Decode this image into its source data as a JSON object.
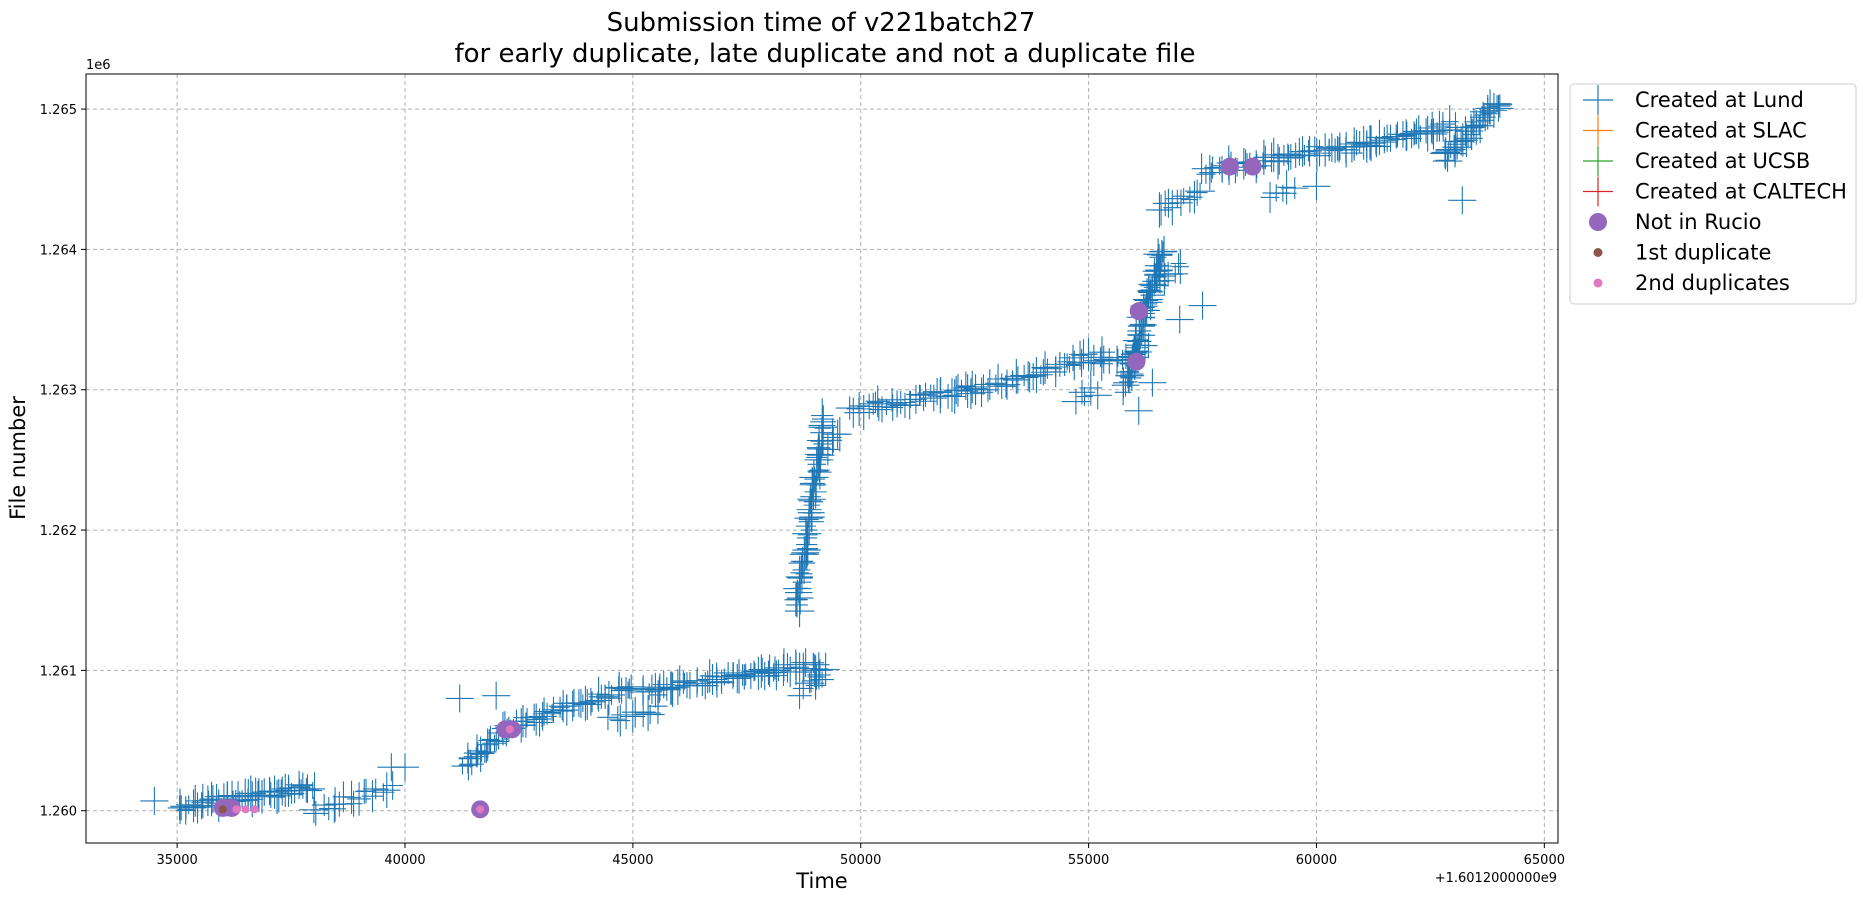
{
  "chart_data": {
    "type": "scatter",
    "title": [
      "Submission time of v221batch27",
      "for early duplicate, late duplicate and not a duplicate file"
    ],
    "xlabel": "Time",
    "ylabel": "File number",
    "x_offset_label": "+1.6012000000e9",
    "y_scale_label": "1e6",
    "xlim": [
      33000,
      65300
    ],
    "ylim": [
      1259770,
      1265250
    ],
    "xticks": [
      35000,
      40000,
      45000,
      50000,
      55000,
      60000,
      65000
    ],
    "xtick_labels": [
      "35000",
      "40000",
      "45000",
      "50000",
      "55000",
      "60000",
      "65000"
    ],
    "yticks": [
      1260000,
      1261000,
      1262000,
      1263000,
      1264000,
      1265000
    ],
    "ytick_labels": [
      "1.260",
      "1.261",
      "1.262",
      "1.263",
      "1.264",
      "1.265"
    ],
    "grid": true,
    "legend_position": "outside-right",
    "lund_segments": [
      {
        "x0": 35000,
        "x1": 38000,
        "y0": 1260020,
        "y1": 1260170,
        "n": 60
      },
      {
        "x0": 38000,
        "x1": 39700,
        "y0": 1260000,
        "y1": 1260160,
        "n": 18
      },
      {
        "x0": 41300,
        "x1": 42300,
        "y0": 1260320,
        "y1": 1260600,
        "n": 24
      },
      {
        "x0": 42300,
        "x1": 45000,
        "y0": 1260600,
        "y1": 1260880,
        "n": 45
      },
      {
        "x0": 44500,
        "x1": 45500,
        "y0": 1260640,
        "y1": 1260720,
        "n": 10
      },
      {
        "x0": 45200,
        "x1": 47700,
        "y0": 1260840,
        "y1": 1260990,
        "n": 42
      },
      {
        "x0": 47700,
        "x1": 49200,
        "y0": 1260980,
        "y1": 1261040,
        "n": 26
      },
      {
        "x0": 48700,
        "x1": 49200,
        "y0": 1260850,
        "y1": 1260950,
        "n": 8
      },
      {
        "x0": 48600,
        "x1": 49200,
        "y0": 1261450,
        "y1": 1262800,
        "n": 70
      },
      {
        "x0": 49300,
        "x1": 49600,
        "y0": 1262600,
        "y1": 1262700,
        "n": 5
      },
      {
        "x0": 49800,
        "x1": 52500,
        "y0": 1262850,
        "y1": 1263000,
        "n": 40
      },
      {
        "x0": 52500,
        "x1": 55300,
        "y0": 1263000,
        "y1": 1263250,
        "n": 40
      },
      {
        "x0": 55300,
        "x1": 56300,
        "y0": 1263200,
        "y1": 1263300,
        "n": 12
      },
      {
        "x0": 54700,
        "x1": 55100,
        "y0": 1262940,
        "y1": 1262980,
        "n": 4
      },
      {
        "x0": 55800,
        "x1": 56600,
        "y0": 1263000,
        "y1": 1264000,
        "n": 70
      },
      {
        "x0": 56300,
        "x1": 57000,
        "y0": 1263700,
        "y1": 1263900,
        "n": 10
      },
      {
        "x0": 56500,
        "x1": 57500,
        "y0": 1264300,
        "y1": 1264380,
        "n": 12
      },
      {
        "x0": 57500,
        "x1": 60500,
        "y0": 1264550,
        "y1": 1264730,
        "n": 45
      },
      {
        "x0": 59000,
        "x1": 59500,
        "y0": 1264400,
        "y1": 1264450,
        "n": 5
      },
      {
        "x0": 60500,
        "x1": 63000,
        "y0": 1264700,
        "y1": 1264880,
        "n": 45
      },
      {
        "x0": 62800,
        "x1": 64000,
        "y0": 1264650,
        "y1": 1265050,
        "n": 40
      }
    ],
    "lund_points": [
      [
        34500,
        1260070
      ],
      [
        39700,
        1260310
      ],
      [
        40000,
        1260310
      ],
      [
        41200,
        1260800
      ],
      [
        42000,
        1260820
      ],
      [
        57500,
        1263600
      ],
      [
        57000,
        1263500
      ],
      [
        55200,
        1262960
      ],
      [
        56100,
        1262850
      ],
      [
        56400,
        1263050
      ],
      [
        63200,
        1264350
      ],
      [
        60000,
        1264450
      ]
    ],
    "series": [
      {
        "name": "Created at Lund",
        "color": "#1f77b4",
        "marker": "plus"
      },
      {
        "name": "Created at SLAC",
        "color": "#ff7f0e",
        "marker": "plus"
      },
      {
        "name": "Created at UCSB",
        "color": "#2ca02c",
        "marker": "plus"
      },
      {
        "name": "Created at CALTECH",
        "color": "#d62728",
        "marker": "plus"
      },
      {
        "name": "Not in Rucio",
        "color": "#9467bd",
        "marker": "circle",
        "points": [
          [
            36000,
            1260020
          ],
          [
            36200,
            1260020
          ],
          [
            41650,
            1260010
          ],
          [
            42200,
            1260580
          ],
          [
            42350,
            1260580
          ],
          [
            56100,
            1263560
          ],
          [
            56050,
            1263200
          ],
          [
            58100,
            1264590
          ],
          [
            58600,
            1264590
          ]
        ]
      },
      {
        "name": "1st duplicate",
        "color": "#8c564b",
        "marker": "dot",
        "points": [
          [
            36000,
            1260010
          ]
        ]
      },
      {
        "name": "2nd duplicates",
        "color": "#e377c2",
        "marker": "dot",
        "points": [
          [
            36300,
            1260010
          ],
          [
            36500,
            1260010
          ],
          [
            36700,
            1260010
          ],
          [
            41650,
            1260010
          ],
          [
            42300,
            1260580
          ]
        ]
      }
    ]
  }
}
